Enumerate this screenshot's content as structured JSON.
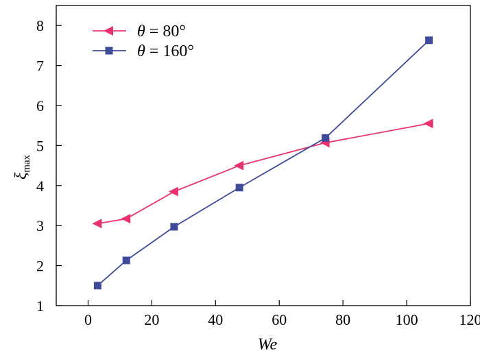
{
  "chart_data": {
    "type": "line",
    "xlabel": "We",
    "ylabel": {
      "main": "ξ",
      "sub": "max"
    },
    "xlim": [
      -10,
      120
    ],
    "ylim": [
      1,
      8.5
    ],
    "xticks": [
      0,
      20,
      40,
      60,
      80,
      100,
      120
    ],
    "yticks": [
      1,
      2,
      3,
      4,
      5,
      6,
      7,
      8
    ],
    "legend_position": "top-left",
    "grid": false,
    "series": [
      {
        "name": "θ = 80°",
        "name_symbol": "θ",
        "name_value": " = 80°",
        "color": "#e8336f",
        "marker": "triangle-left",
        "x": [
          3,
          12,
          27,
          47.5,
          74.5,
          107
        ],
        "y": [
          3.05,
          3.17,
          3.85,
          4.5,
          5.07,
          5.55
        ]
      },
      {
        "name": "θ = 160°",
        "name_symbol": "θ",
        "name_value": " = 160°",
        "color": "#3f4a98",
        "marker": "square",
        "x": [
          3,
          12,
          27,
          47.5,
          74.5,
          107
        ],
        "y": [
          1.5,
          2.13,
          2.97,
          3.95,
          5.19,
          7.63
        ]
      }
    ]
  }
}
